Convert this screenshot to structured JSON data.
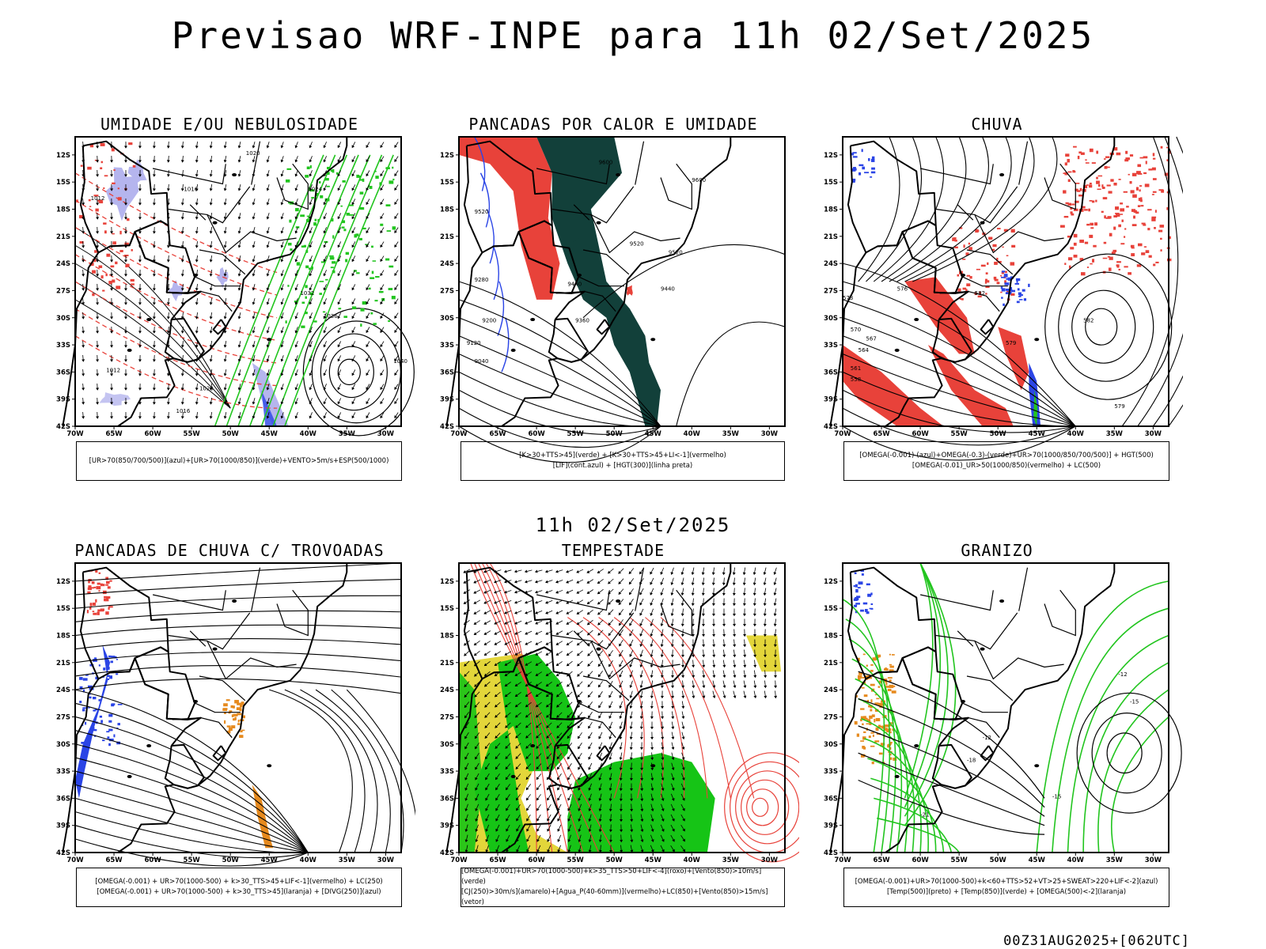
{
  "page": {
    "title": "Previsao WRF-INPE  para 11h 02/Set/2025",
    "mid_title": "11h 02/Set/2025",
    "footer": "00Z31AUG2025+[062UTC]"
  },
  "axes": {
    "lat_labels": [
      "12S",
      "15S",
      "18S",
      "21S",
      "24S",
      "27S",
      "30S",
      "33S",
      "36S",
      "39S",
      "42S"
    ],
    "lon_labels": [
      "70W",
      "65W",
      "60W",
      "55W",
      "50W",
      "45W",
      "40W",
      "35W",
      "30W"
    ]
  },
  "colors": {
    "red": "#e8423a",
    "blue": "#2b45e6",
    "green": "#22c51f",
    "lavender": "#b5b5ee",
    "darkgreen": "#12403a",
    "orange": "#e68a1e",
    "yellow": "#e3d63a",
    "brightgreen": "#16c416"
  },
  "panels": [
    {
      "title": "UMIDADE E/OU NEBULOSIDADE",
      "legend": [
        "[UR>70(850/700/500)](azul)+[UR>70(1000/850)](verde)+VENTO>5m/s+ESP(500/1000)"
      ],
      "contour_labels": [
        "1020",
        "1016",
        "1024",
        "1012",
        "1032",
        "1036",
        "1040",
        "1020",
        "1016",
        "1012"
      ]
    },
    {
      "title": "PANCADAS POR CALOR E UMIDADE",
      "legend": [
        "[K>30+TTS>45](verde) + [K>30+TTS>45+LI<-1](vermelho)",
        "[LIF](cont.azul) + [HGT(300)](linha preta)"
      ],
      "contour_labels": [
        "9600",
        "9600",
        "9520",
        "9520",
        "9520",
        "9440",
        "9440",
        "9360",
        "9280",
        "9200",
        "9120",
        "9040"
      ]
    },
    {
      "title": "CHUVA",
      "legend": [
        "[OMEGA(-0.001)-(azul)+OMEGA(-0.3)-(verde)+UR>70(1000/850/700/500)] + HGT(500)",
        "[OMEGA(-0.01)_UR>50(1000/850)(vermelho) + LC(500)"
      ],
      "contour_labels": [
        "582",
        "579",
        "576",
        "573",
        "570",
        "567",
        "564",
        "561",
        "558",
        "582",
        "579"
      ]
    },
    {
      "title": "PANCADAS DE CHUVA C/ TROVOADAS",
      "legend": [
        "[OMEGA(-0.001) + UR>70(1000-500) + k>30_TTS>45+LIF<-1](vermelho) + LC(250)",
        "[OMEGA(-0.001) + UR>70(1000-500) + k>30_TTS>45](laranja) + [DIVG(250)](azul)"
      ],
      "contour_labels": []
    },
    {
      "title": "TEMPESTADE",
      "legend": [
        "[OMEGA(-0.001)+UR>70(1000-500)+k>35_TTS>50+LIF<-4](roxo)+[Vento(850)>10m/s](verde)",
        "[CJ(250)>30m/s](amarelo)+[Agua_P(40-60mm)](vermelho)+LC(850)+[Vento(850)>15m/s](vetor)"
      ],
      "contour_labels": []
    },
    {
      "title": "GRANIZO",
      "legend": [
        "[OMEGA(-0.001)+UR>70(1000-500)+k<60+TTS>52+VT>25+SWEAT>220+LIF<-2](azul)",
        "[Temp(500)](preto) + [Temp(850)](verde) + [OMEGA(500)<-2](laranja)"
      ],
      "contour_labels": [
        "-12",
        "-15",
        "-12",
        "-18",
        "-15",
        "-21"
      ]
    }
  ]
}
